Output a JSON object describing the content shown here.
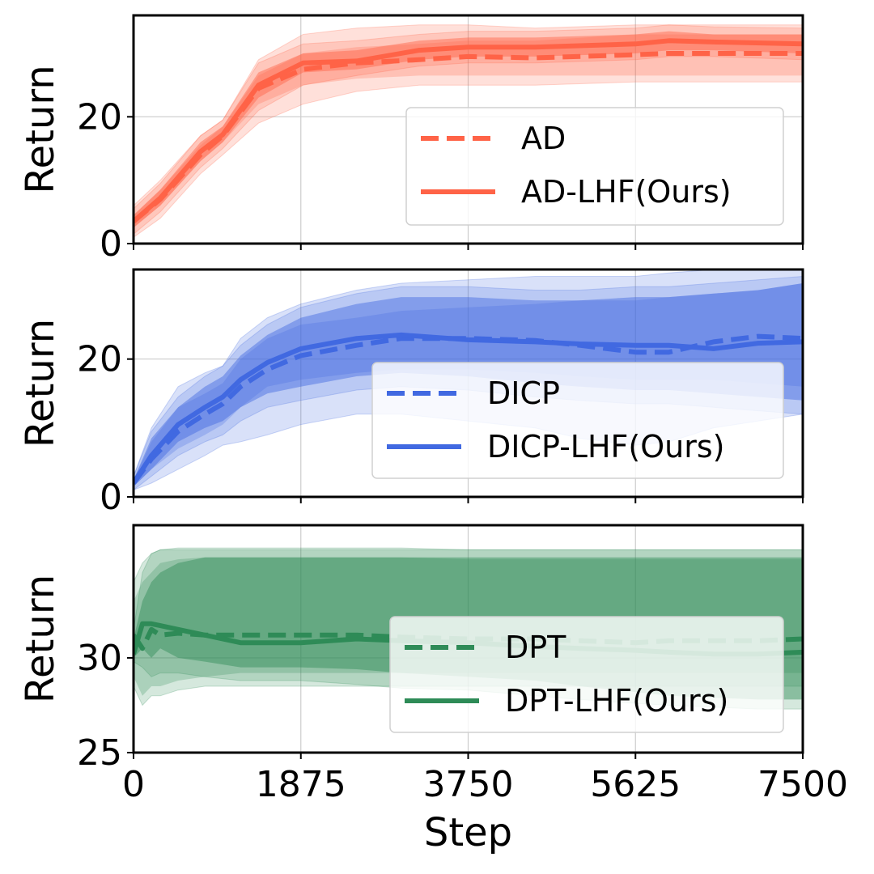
{
  "chart_data": [
    {
      "type": "line",
      "id": "ad",
      "ylabel": "Return",
      "xlabel": "",
      "xlim": [
        0,
        7500
      ],
      "ylim": [
        0,
        36
      ],
      "yticks": [
        0,
        20
      ],
      "x": [
        0,
        300,
        750,
        1000,
        1400,
        1900,
        2500,
        3200,
        3750,
        4500,
        5625,
        6000,
        6500,
        7500
      ],
      "legend_position": "lower-right",
      "series": [
        {
          "name": "AD",
          "style": "dashed",
          "color": "#ff6347",
          "values": [
            3.5,
            7,
            14,
            17,
            24.5,
            27.5,
            28.5,
            29,
            29.5,
            29.3,
            29.8,
            30,
            30,
            30
          ],
          "band_inner": [
            [
              2.5,
              4.5
            ],
            [
              6,
              8.5
            ],
            [
              13,
              15.5
            ],
            [
              16,
              18.5
            ],
            [
              22,
              26.5
            ],
            [
              25,
              30
            ],
            [
              26,
              31
            ],
            [
              26.5,
              31.5
            ],
            [
              26.5,
              32
            ],
            [
              26.5,
              32
            ],
            [
              26.5,
              33
            ],
            [
              26.5,
              33
            ],
            [
              26.5,
              33
            ],
            [
              26.5,
              33
            ]
          ],
          "band_outer": [
            [
              1,
              6
            ],
            [
              4,
              10
            ],
            [
              11,
              17
            ],
            [
              14,
              19.5
            ],
            [
              19,
              29
            ],
            [
              22,
              33
            ],
            [
              24,
              34
            ],
            [
              25,
              34.5
            ],
            [
              25,
              34.5
            ],
            [
              25,
              34
            ],
            [
              25.5,
              34.5
            ],
            [
              25.5,
              34.5
            ],
            [
              25.5,
              34.5
            ],
            [
              25.5,
              34.5
            ]
          ]
        },
        {
          "name": "AD-LHF(Ours)",
          "style": "solid",
          "color": "#ff6347",
          "values": [
            3.5,
            7.2,
            14.5,
            17.2,
            25,
            28.5,
            28.8,
            30.5,
            31,
            31,
            31.5,
            32,
            31.8,
            31.5
          ],
          "band_inner": [
            [
              2.5,
              4.5
            ],
            [
              6,
              8.5
            ],
            [
              13,
              16
            ],
            [
              16,
              18.5
            ],
            [
              23,
              27
            ],
            [
              27,
              30
            ],
            [
              27.5,
              30.5
            ],
            [
              29,
              32
            ],
            [
              29.5,
              32.5
            ],
            [
              29.5,
              32.5
            ],
            [
              30,
              33
            ],
            [
              30.5,
              33.5
            ],
            [
              30.5,
              33
            ],
            [
              30,
              33
            ]
          ],
          "band_outer": [
            [
              1.5,
              5.5
            ],
            [
              5,
              9.5
            ],
            [
              12,
              17
            ],
            [
              15,
              19.5
            ],
            [
              21,
              28.5
            ],
            [
              25,
              31.5
            ],
            [
              26.5,
              32
            ],
            [
              28,
              33
            ],
            [
              28.5,
              33.5
            ],
            [
              28.5,
              33.5
            ],
            [
              29,
              34
            ],
            [
              29.5,
              34.5
            ],
            [
              29.5,
              34.2
            ],
            [
              29,
              34
            ]
          ]
        }
      ]
    },
    {
      "type": "line",
      "id": "dicp",
      "ylabel": "Return",
      "xlabel": "",
      "xlim": [
        0,
        7500
      ],
      "ylim": [
        0,
        33
      ],
      "yticks": [
        0,
        20
      ],
      "x": [
        0,
        200,
        500,
        800,
        1000,
        1200,
        1500,
        1875,
        2500,
        3000,
        3750,
        4500,
        5000,
        5625,
        6000,
        6500,
        7000,
        7500
      ],
      "legend_position": "lower-right",
      "series": [
        {
          "name": "DICP",
          "style": "dashed",
          "color": "#4169e1",
          "values": [
            2,
            5.5,
            9.5,
            12,
            13.5,
            16,
            18.5,
            20.5,
            22,
            23,
            23,
            22.7,
            22,
            21,
            21,
            22.5,
            23.3,
            23
          ],
          "band_inner": [
            [
              1.5,
              2.5
            ],
            [
              4,
              8
            ],
            [
              7,
              13
            ],
            [
              9,
              15
            ],
            [
              10.5,
              16.5
            ],
            [
              13,
              20
            ],
            [
              16,
              23
            ],
            [
              17,
              25
            ],
            [
              18,
              26
            ],
            [
              18.5,
              27
            ],
            [
              18.5,
              27.5
            ],
            [
              18,
              28
            ],
            [
              17.5,
              28.5
            ],
            [
              17,
              28.5
            ],
            [
              17,
              29
            ],
            [
              17,
              29.5
            ],
            [
              16.5,
              30
            ],
            [
              16,
              31
            ]
          ],
          "band_outer": [
            [
              1,
              3
            ],
            [
              2,
              10
            ],
            [
              4,
              16
            ],
            [
              6,
              18
            ],
            [
              7.5,
              19
            ],
            [
              8,
              23
            ],
            [
              9,
              26
            ],
            [
              10.5,
              28
            ],
            [
              12,
              30
            ],
            [
              12,
              31
            ],
            [
              11,
              31.5
            ],
            [
              10,
              32
            ],
            [
              8.5,
              32
            ],
            [
              7.5,
              32
            ],
            [
              8,
              32.5
            ],
            [
              10,
              33
            ],
            [
              11,
              33
            ],
            [
              12,
              33
            ]
          ]
        },
        {
          "name": "DICP-LHF(Ours)",
          "style": "solid",
          "color": "#4169e1",
          "values": [
            2,
            6,
            10.5,
            13,
            14.5,
            17,
            19.5,
            21.5,
            23,
            23.5,
            22.8,
            22.5,
            22.2,
            22,
            22,
            21.5,
            22.3,
            22.5
          ],
          "band_inner": [
            [
              1.5,
              2.5
            ],
            [
              4,
              8.5
            ],
            [
              8,
              13
            ],
            [
              10,
              16
            ],
            [
              11,
              17.5
            ],
            [
              13,
              20.5
            ],
            [
              15,
              23.5
            ],
            [
              16,
              26
            ],
            [
              17.5,
              28
            ],
            [
              18,
              29
            ],
            [
              17.5,
              29
            ],
            [
              16.5,
              28.5
            ],
            [
              16,
              28.5
            ],
            [
              15.5,
              29
            ],
            [
              15.5,
              29
            ],
            [
              15,
              29.5
            ],
            [
              14.5,
              30
            ],
            [
              14,
              31
            ]
          ],
          "band_outer": [
            [
              1,
              3
            ],
            [
              3,
              9.5
            ],
            [
              6,
              14.5
            ],
            [
              8,
              17.5
            ],
            [
              9,
              19
            ],
            [
              11,
              22
            ],
            [
              13,
              25
            ],
            [
              14,
              27.5
            ],
            [
              15.5,
              29.5
            ],
            [
              16,
              30.5
            ],
            [
              15.5,
              30.5
            ],
            [
              14.5,
              30
            ],
            [
              14,
              30
            ],
            [
              13.5,
              30.5
            ],
            [
              13.5,
              30.5
            ],
            [
              13,
              31
            ],
            [
              12.5,
              31.5
            ],
            [
              12,
              32
            ]
          ]
        }
      ]
    },
    {
      "type": "line",
      "id": "dpt",
      "ylabel": "Return",
      "xlabel": "Step",
      "xlim": [
        0,
        7500
      ],
      "ylim": [
        25,
        37
      ],
      "yticks": [
        25,
        30
      ],
      "xticks": [
        0,
        1875,
        3750,
        5625,
        7500
      ],
      "x": [
        0,
        100,
        200,
        300,
        500,
        800,
        1200,
        1875,
        2500,
        3000,
        3750,
        4500,
        5000,
        5625,
        6000,
        6500,
        7000,
        7500
      ],
      "legend_position": "lower-right",
      "series": [
        {
          "name": "DPT",
          "style": "dashed",
          "color": "#2e8b57",
          "values": [
            31.2,
            30.5,
            31.5,
            31.2,
            31.3,
            31.2,
            31.2,
            31.2,
            31.2,
            31.1,
            31,
            31,
            30.9,
            30.8,
            30.9,
            30.9,
            30.9,
            31
          ],
          "band_inner": [
            [
              29,
              33
            ],
            [
              28,
              34
            ],
            [
              28.5,
              34.5
            ],
            [
              28.5,
              35
            ],
            [
              28.8,
              35.2
            ],
            [
              29,
              35.3
            ],
            [
              29.2,
              35.3
            ],
            [
              29.2,
              35.3
            ],
            [
              29.2,
              35.3
            ],
            [
              29.2,
              35.3
            ],
            [
              29.2,
              35.2
            ],
            [
              29.2,
              35.2
            ],
            [
              29.2,
              35.2
            ],
            [
              29.2,
              35.2
            ],
            [
              29.2,
              35.2
            ],
            [
              29.2,
              35.2
            ],
            [
              29.2,
              35.2
            ],
            [
              29.2,
              35.2
            ]
          ],
          "band_outer": [
            [
              28.5,
              34
            ],
            [
              27.5,
              35
            ],
            [
              28,
              35.5
            ],
            [
              28,
              35.7
            ],
            [
              28.3,
              35.8
            ],
            [
              28.5,
              35.8
            ],
            [
              28.5,
              35.8
            ],
            [
              28.5,
              35.8
            ],
            [
              28.5,
              35.8
            ],
            [
              28.5,
              35.8
            ],
            [
              28.5,
              35.7
            ],
            [
              28.5,
              35.7
            ],
            [
              28.5,
              35.7
            ],
            [
              28.5,
              35.7
            ],
            [
              28.5,
              35.7
            ],
            [
              28.5,
              35.7
            ],
            [
              28.5,
              35.7
            ],
            [
              28.5,
              35.7
            ]
          ]
        },
        {
          "name": "DPT-LHF(Ours)",
          "style": "solid",
          "color": "#2e8b57",
          "values": [
            30.2,
            31.8,
            31.8,
            31.7,
            31.5,
            31.2,
            30.8,
            30.8,
            31,
            30.9,
            30.8,
            30.6,
            30.5,
            30.4,
            30.3,
            30.2,
            30.2,
            30.3
          ],
          "band_inner": [
            [
              30,
              31
            ],
            [
              30.5,
              33
            ],
            [
              30,
              34
            ],
            [
              30.5,
              34.5
            ],
            [
              30,
              35
            ],
            [
              29.8,
              35.3
            ],
            [
              29.5,
              35.3
            ],
            [
              29.5,
              35.3
            ],
            [
              29.4,
              35.3
            ],
            [
              29.2,
              35.3
            ],
            [
              29,
              35.3
            ],
            [
              28.8,
              35.3
            ],
            [
              28.5,
              35.3
            ],
            [
              28.2,
              35.3
            ],
            [
              28,
              35.3
            ],
            [
              27.9,
              35.3
            ],
            [
              27.8,
              35.3
            ],
            [
              27.8,
              35.3
            ]
          ],
          "band_outer": [
            [
              29.8,
              31.5
            ],
            [
              29.5,
              34.5
            ],
            [
              29,
              35.5
            ],
            [
              29.2,
              35.7
            ],
            [
              29.2,
              35.7
            ],
            [
              29,
              35.7
            ],
            [
              28.8,
              35.7
            ],
            [
              28.8,
              35.7
            ],
            [
              28.6,
              35.7
            ],
            [
              28.4,
              35.7
            ],
            [
              28.3,
              35.7
            ],
            [
              28,
              35.7
            ],
            [
              27.8,
              35.7
            ],
            [
              27.6,
              35.7
            ],
            [
              27.5,
              35.7
            ],
            [
              27.4,
              35.7
            ],
            [
              27.3,
              35.7
            ],
            [
              27.3,
              35.7
            ]
          ]
        }
      ]
    }
  ]
}
